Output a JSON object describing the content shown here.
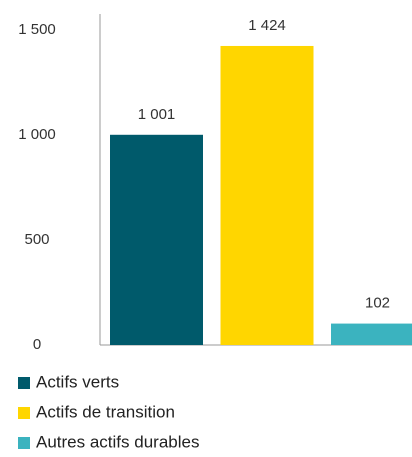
{
  "chart_data": {
    "type": "bar",
    "categories": [
      "Actifs verts",
      "Actifs de transition",
      "Autres actifs durables"
    ],
    "values": [
      1001,
      1424,
      102
    ],
    "value_labels": [
      "1 001",
      "1 424",
      "102"
    ],
    "colors": [
      "#005a6b",
      "#ffd600",
      "#3bb3bf"
    ],
    "ylim": [
      0,
      1500
    ],
    "yticks": [
      0,
      500,
      {
        "value": 1000,
        "label": "1 000"
      },
      {
        "value": 1500,
        "label": "1 500"
      }
    ],
    "legend": "bottom-left"
  }
}
